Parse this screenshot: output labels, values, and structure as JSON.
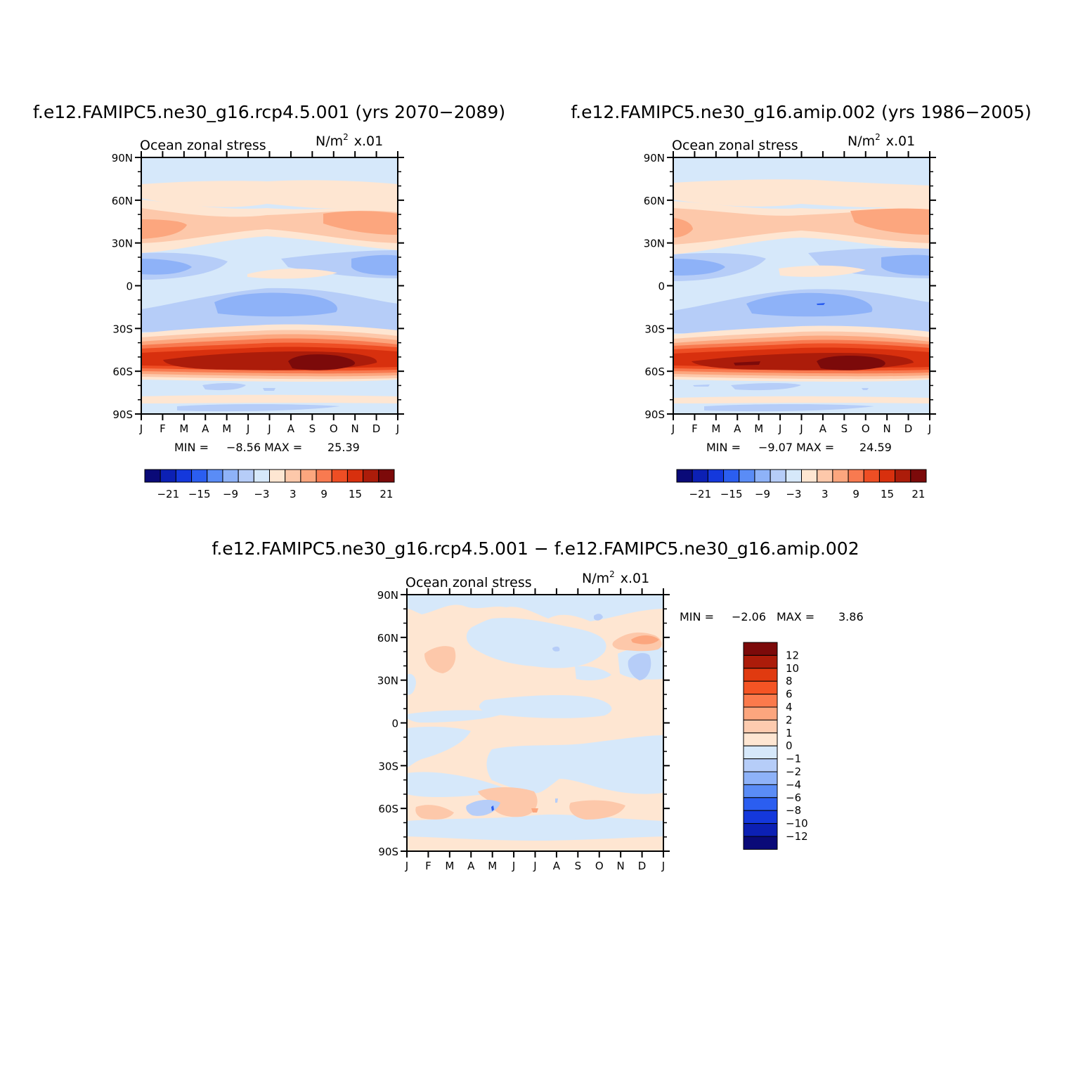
{
  "chart_data": [
    {
      "type": "heatmap",
      "title": "f.e12.FAMIPC5.ne30_g16.rcp4.5.001 (yrs 2070-2089)",
      "subtitle_left": "Ocean zonal stress",
      "units": "N/m",
      "units_sup": "2",
      "units_scale": "x.01",
      "x_ticks": [
        "J",
        "F",
        "M",
        "A",
        "M",
        "J",
        "J",
        "A",
        "S",
        "O",
        "N",
        "D",
        "J"
      ],
      "y_ticks": [
        "90N",
        "60N",
        "30N",
        "0",
        "30S",
        "60S",
        "90S"
      ],
      "min_label": "MIN =",
      "min": "-8.56",
      "max_label": "MAX =",
      "max": "25.39",
      "colorbar_labels": [
        "-21",
        "-15",
        "-9",
        "-3",
        "3",
        "9",
        "15",
        "21"
      ]
    },
    {
      "type": "heatmap",
      "title": "f.e12.FAMIPC5.ne30_g16.amip.002 (yrs 1986-2005)",
      "subtitle_left": "Ocean zonal stress",
      "units": "N/m",
      "units_sup": "2",
      "units_scale": "x.01",
      "x_ticks": [
        "J",
        "F",
        "M",
        "A",
        "M",
        "J",
        "J",
        "A",
        "S",
        "O",
        "N",
        "D",
        "J"
      ],
      "y_ticks": [
        "90N",
        "60N",
        "30N",
        "0",
        "30S",
        "60S",
        "90S"
      ],
      "min_label": "MIN =",
      "min": "-9.07",
      "max_label": "MAX =",
      "max": "24.59",
      "colorbar_labels": [
        "-21",
        "-15",
        "-9",
        "-3",
        "3",
        "9",
        "15",
        "21"
      ]
    },
    {
      "type": "heatmap",
      "title": "f.e12.FAMIPC5.ne30_g16.rcp4.5.001 - f.e12.FAMIPC5.ne30_g16.amip.002",
      "subtitle_left": "Ocean zonal stress",
      "units": "N/m",
      "units_sup": "2",
      "units_scale": "x.01",
      "x_ticks": [
        "J",
        "F",
        "M",
        "A",
        "M",
        "J",
        "J",
        "A",
        "S",
        "O",
        "N",
        "D",
        "J"
      ],
      "y_ticks": [
        "90N",
        "60N",
        "30N",
        "0",
        "30S",
        "60S",
        "90S"
      ],
      "min_label": "MIN =",
      "min": "-2.06",
      "max_label": "MAX =",
      "max": "3.86",
      "colorbar_labels": [
        "12",
        "10",
        "8",
        "6",
        "4",
        "2",
        "1",
        "0",
        "-1",
        "-2",
        "-4",
        "-6",
        "-8",
        "-10",
        "-12"
      ]
    }
  ],
  "colors": {
    "palette_16": [
      "#0a0a78",
      "#0c20b4",
      "#1438dc",
      "#2b5ef0",
      "#5a8cf6",
      "#8eb2f8",
      "#b6cdf8",
      "#d6e8fa",
      "#fee6d2",
      "#fdc8aa",
      "#fca67e",
      "#f87a50",
      "#ee4e24",
      "#d8300e",
      "#ac1c0a",
      "#7c0a0a"
    ],
    "palette_diff": [
      "#7c0a0a",
      "#ac1c0a",
      "#e03a10",
      "#f45424",
      "#fb7a4c",
      "#fca67e",
      "#fdcbaf",
      "#fee6d2",
      "#d6e8fa",
      "#b6cdf8",
      "#8eb2f8",
      "#5a8cf6",
      "#2b5ef0",
      "#1438dc",
      "#0c20b4",
      "#0a0a78"
    ]
  }
}
